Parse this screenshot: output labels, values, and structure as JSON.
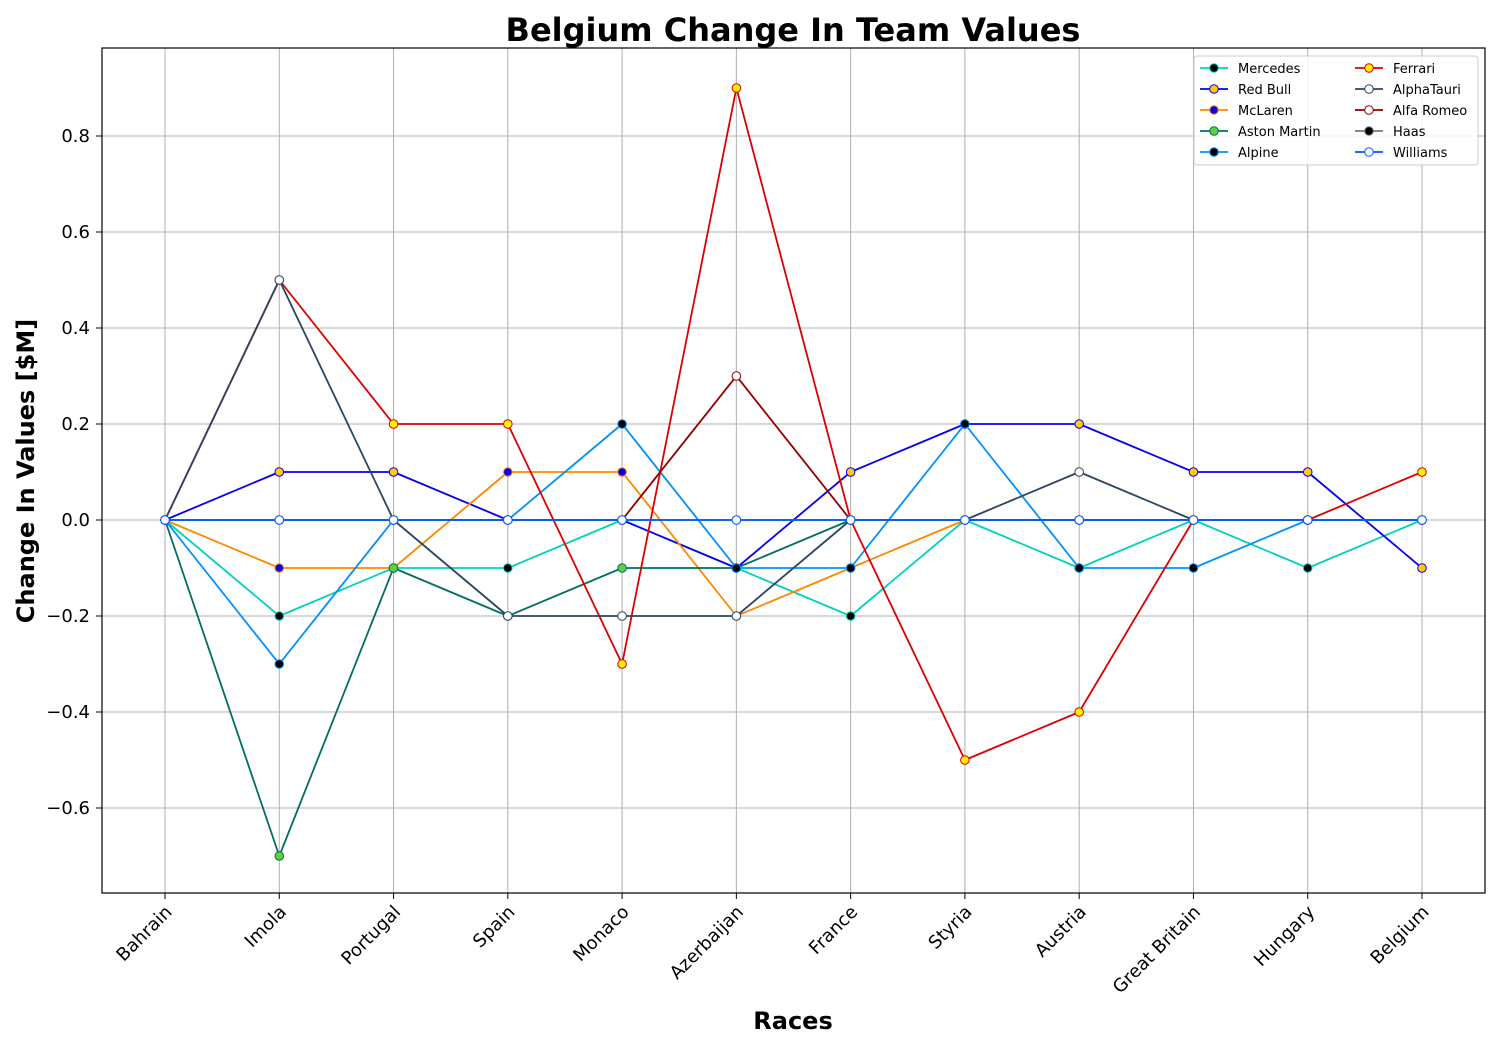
{
  "chart_data": {
    "type": "line",
    "title": "Belgium Change In Team Values",
    "xlabel": "Races",
    "ylabel": "Change In Values [$M]",
    "categories": [
      "Bahrain",
      "Imola",
      "Portugal",
      "Spain",
      "Monaco",
      "Azerbaijan",
      "France",
      "Styria",
      "Austria",
      "Great Britain",
      "Hungary",
      "Belgium"
    ],
    "ylim": [
      -0.78,
      0.98
    ],
    "yticks": [
      -0.6,
      -0.4,
      -0.2,
      0.0,
      0.2,
      0.4,
      0.6,
      0.8
    ],
    "ytick_labels": [
      "−0.6",
      "−0.4",
      "−0.2",
      "0.0",
      "0.2",
      "0.4",
      "0.6",
      "0.8"
    ],
    "grid": true,
    "legend_position": "top-right",
    "series": [
      {
        "name": "Mercedes",
        "color": "#00D2BE",
        "marker_fill": "#000000",
        "marker_edge": "#00D2BE",
        "values": [
          0,
          -0.2,
          -0.1,
          -0.1,
          0,
          -0.1,
          -0.2,
          0,
          -0.1,
          0,
          -0.1,
          0
        ]
      },
      {
        "name": "Red Bull",
        "color": "#0600EF",
        "marker_fill": "#FFC906",
        "marker_edge": "#0600EF",
        "values": [
          0,
          0.1,
          0.1,
          0,
          0,
          -0.1,
          0.1,
          0.2,
          0.2,
          0.1,
          0.1,
          -0.1
        ]
      },
      {
        "name": "McLaren",
        "color": "#FF8700",
        "marker_fill": "#0600EF",
        "marker_edge": "#FF8700",
        "values": [
          0,
          -0.1,
          -0.1,
          0.1,
          0.1,
          -0.2,
          -0.1,
          0,
          0,
          0,
          0,
          0
        ]
      },
      {
        "name": "Aston Martin",
        "color": "#006F62",
        "marker_fill": "#5FCF3F",
        "marker_edge": "#006F62",
        "values": [
          0,
          -0.7,
          -0.1,
          -0.2,
          -0.1,
          -0.1,
          0,
          0,
          0,
          0,
          0,
          0
        ]
      },
      {
        "name": "Alpine",
        "color": "#0090FF",
        "marker_fill": "#000000",
        "marker_edge": "#0090FF",
        "values": [
          0,
          -0.3,
          0,
          0,
          0.2,
          -0.1,
          -0.1,
          0.2,
          -0.1,
          -0.1,
          0,
          0
        ]
      },
      {
        "name": "Ferrari",
        "color": "#DC0000",
        "marker_fill": "#FFF200",
        "marker_edge": "#DC0000",
        "values": [
          0,
          0.5,
          0.2,
          0.2,
          -0.3,
          0.9,
          0,
          -0.5,
          -0.4,
          0,
          0,
          0.1
        ]
      },
      {
        "name": "AlphaTauri",
        "color": "#2B4562",
        "marker_fill": "#FFFFFF",
        "marker_edge": "#2B4562",
        "values": [
          0,
          0.5,
          0,
          -0.2,
          -0.2,
          -0.2,
          0,
          0,
          0.1,
          0,
          0,
          0
        ]
      },
      {
        "name": "Alfa Romeo",
        "color": "#900000",
        "marker_fill": "#FFFFFF",
        "marker_edge": "#900000",
        "values": [
          0,
          0,
          0,
          0,
          0,
          0.3,
          0,
          0,
          0,
          0,
          0,
          0
        ]
      },
      {
        "name": "Haas",
        "color": "#787878",
        "marker_fill": "#000000",
        "marker_edge": "#787878",
        "values": [
          0,
          0,
          0,
          0,
          0,
          0,
          0,
          0,
          0,
          0,
          0,
          0
        ]
      },
      {
        "name": "Williams",
        "color": "#005AFF",
        "marker_fill": "#FFFFFF",
        "marker_edge": "#005AFF",
        "values": [
          0,
          0,
          0,
          0,
          0,
          0,
          0,
          0,
          0,
          0,
          0,
          0
        ]
      }
    ]
  }
}
